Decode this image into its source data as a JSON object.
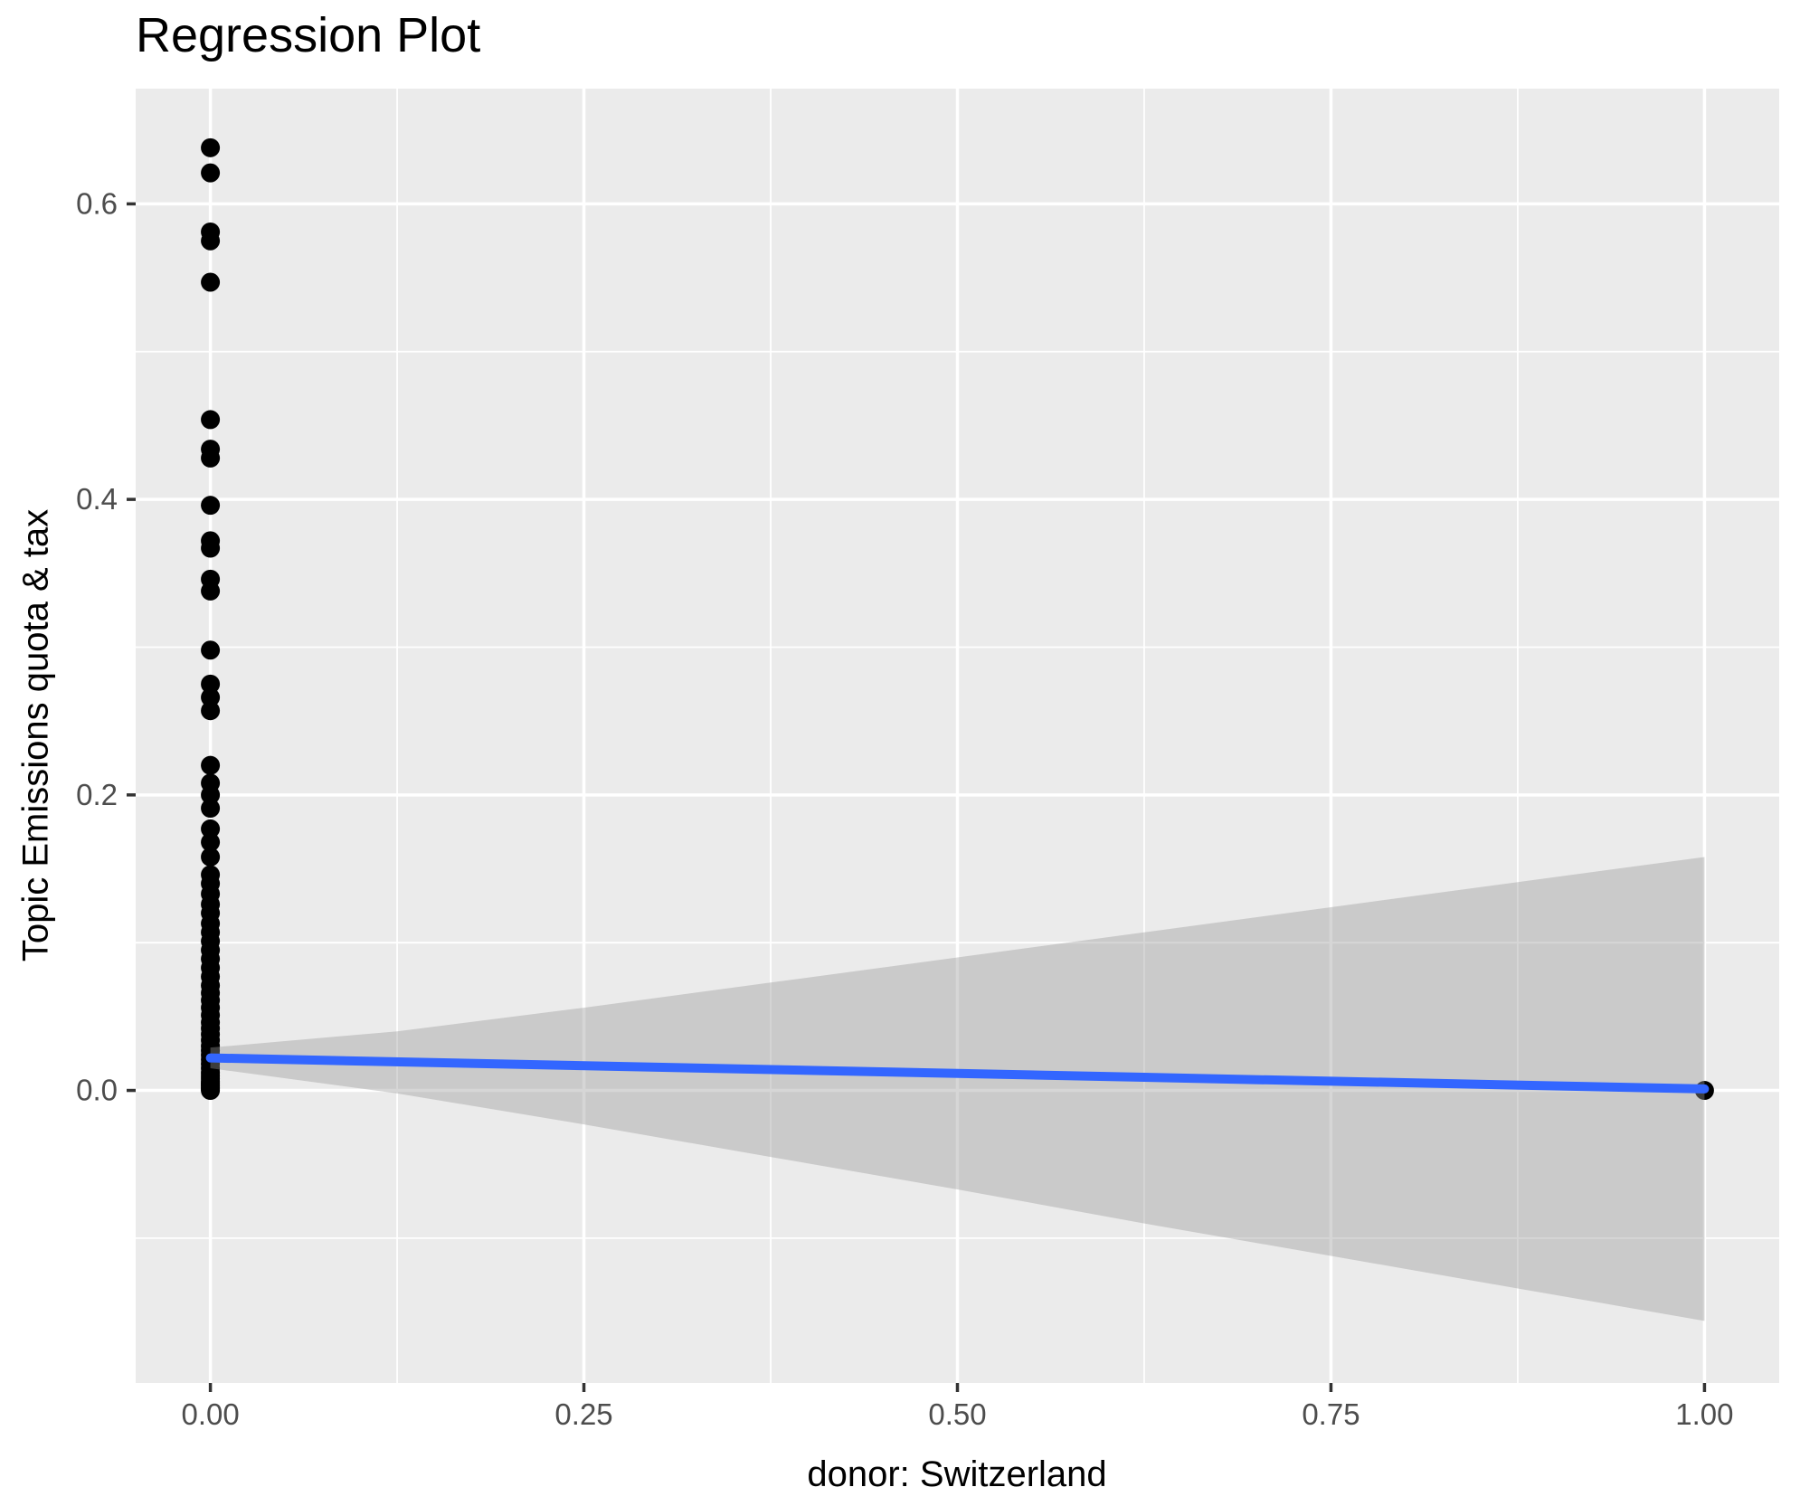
{
  "title": "Regression Plot",
  "axes": {
    "x_title": "donor: Switzerland",
    "y_title": "Topic Emissions quota & tax"
  },
  "colors": {
    "panel_bg": "#EBEBEB",
    "grid": "#FFFFFF",
    "band_fill": "#999999",
    "band_opacity": "0.4",
    "regression_line": "#3366FF",
    "point": "#000000",
    "tick_mark": "#333333",
    "tick_label": "#4D4D4D",
    "title_color": "#000000"
  },
  "chart_data": {
    "type": "scatter",
    "title": "Regression Plot",
    "xlabel": "donor: Switzerland",
    "ylabel": "Topic Emissions quota & tax",
    "xlim": [
      -0.05,
      1.05
    ],
    "ylim": [
      -0.198,
      0.678
    ],
    "grid": true,
    "legend": false,
    "x_ticks": [
      0,
      0.25,
      0.5,
      0.75,
      1
    ],
    "x_tick_labels": [
      "0.00",
      "0.25",
      "0.50",
      "0.75",
      "1.00"
    ],
    "y_ticks": [
      0,
      0.2,
      0.4,
      0.6
    ],
    "y_tick_labels": [
      "0.0",
      "0.2",
      "0.4",
      "0.6"
    ],
    "x_minor": [
      0.125,
      0.375,
      0.625,
      0.875
    ],
    "y_minor": [
      -0.1,
      0.1,
      0.3,
      0.5
    ],
    "points": [
      [
        0,
        0.638
      ],
      [
        0,
        0.621
      ],
      [
        0,
        0.581
      ],
      [
        0,
        0.575
      ],
      [
        0,
        0.547
      ],
      [
        0,
        0.454
      ],
      [
        0,
        0.434
      ],
      [
        0,
        0.428
      ],
      [
        0,
        0.396
      ],
      [
        0,
        0.372
      ],
      [
        0,
        0.367
      ],
      [
        0,
        0.346
      ],
      [
        0,
        0.338
      ],
      [
        0,
        0.298
      ],
      [
        0,
        0.275
      ],
      [
        0,
        0.266
      ],
      [
        0,
        0.257
      ],
      [
        0,
        0.22
      ],
      [
        0,
        0.208
      ],
      [
        0,
        0.2
      ],
      [
        0,
        0.191
      ],
      [
        0,
        0.177
      ],
      [
        0,
        0.168
      ],
      [
        0,
        0.158
      ],
      [
        0,
        0.146
      ],
      [
        0,
        0.14
      ],
      [
        0,
        0.133
      ],
      [
        0,
        0.126
      ],
      [
        0,
        0.12
      ],
      [
        0,
        0.113
      ],
      [
        0,
        0.107
      ],
      [
        0,
        0.101
      ],
      [
        0,
        0.095
      ],
      [
        0,
        0.089
      ],
      [
        0,
        0.083
      ],
      [
        0,
        0.077
      ],
      [
        0,
        0.071
      ],
      [
        0,
        0.066
      ],
      [
        0,
        0.061
      ],
      [
        0,
        0.056
      ],
      [
        0,
        0.051
      ],
      [
        0,
        0.046
      ],
      [
        0,
        0.042
      ],
      [
        0,
        0.038
      ],
      [
        0,
        0.034
      ],
      [
        0,
        0.03
      ],
      [
        0,
        0.027
      ],
      [
        0,
        0.024
      ],
      [
        0,
        0.021
      ],
      [
        0,
        0.018
      ],
      [
        0,
        0.015
      ],
      [
        0,
        0.012
      ],
      [
        0,
        0.01
      ],
      [
        0,
        0.008
      ],
      [
        0,
        0.006
      ],
      [
        0,
        0.005
      ],
      [
        0,
        0.004
      ],
      [
        0,
        0.003
      ],
      [
        0,
        0.002
      ],
      [
        0,
        0.001
      ],
      [
        0,
        0.0
      ],
      [
        1,
        0.0
      ]
    ],
    "regression_line": {
      "x": [
        0,
        1
      ],
      "y": [
        0.022,
        0.001
      ]
    },
    "confidence_band": {
      "x": [
        0,
        0.125,
        0.25,
        0.375,
        0.5,
        0.625,
        0.75,
        0.875,
        1
      ],
      "upper": [
        0.029,
        0.04,
        0.056,
        0.073,
        0.09,
        0.107,
        0.124,
        0.141,
        0.158
      ],
      "lower": [
        0.015,
        -0.002,
        -0.023,
        -0.045,
        -0.067,
        -0.09,
        -0.112,
        -0.134,
        -0.156
      ]
    }
  }
}
